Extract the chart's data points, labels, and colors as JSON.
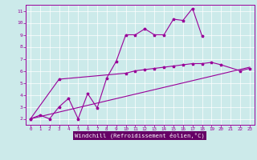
{
  "xlabel": "Windchill (Refroidissement éolien,°C)",
  "bg_color": "#cceaea",
  "line_color": "#990099",
  "xlabel_bg": "#660066",
  "xlim": [
    -0.5,
    23.5
  ],
  "ylim": [
    1.5,
    11.5
  ],
  "xtick_labels": [
    "0",
    "1",
    "2",
    "3",
    "4",
    "5",
    "6",
    "7",
    "8",
    "9",
    "10",
    "11",
    "12",
    "13",
    "14",
    "15",
    "16",
    "17",
    "18",
    "19",
    "20",
    "21",
    "22",
    "23"
  ],
  "ytick_labels": [
    "2",
    "3",
    "4",
    "5",
    "6",
    "7",
    "8",
    "9",
    "10",
    "11"
  ],
  "ytick_vals": [
    2,
    3,
    4,
    5,
    6,
    7,
    8,
    9,
    10,
    11
  ],
  "line1_x": [
    0,
    1,
    2,
    3,
    4,
    5,
    6,
    7,
    8,
    9,
    10,
    11,
    12,
    13,
    14,
    15,
    16,
    17,
    18
  ],
  "line1_y": [
    2.0,
    2.3,
    2.0,
    3.0,
    3.7,
    2.0,
    4.1,
    2.9,
    5.4,
    6.8,
    9.0,
    9.0,
    9.5,
    9.0,
    9.0,
    10.3,
    10.2,
    11.2,
    8.9
  ],
  "line2_x": [
    0,
    3,
    10,
    11,
    12,
    13,
    14,
    15,
    16,
    17,
    18,
    19,
    20,
    22,
    23
  ],
  "line2_y": [
    2.0,
    5.3,
    5.8,
    6.0,
    6.1,
    6.2,
    6.3,
    6.4,
    6.5,
    6.6,
    6.6,
    6.7,
    6.5,
    6.0,
    6.2
  ],
  "line3_x": [
    0,
    23
  ],
  "line3_y": [
    2.0,
    6.3
  ]
}
